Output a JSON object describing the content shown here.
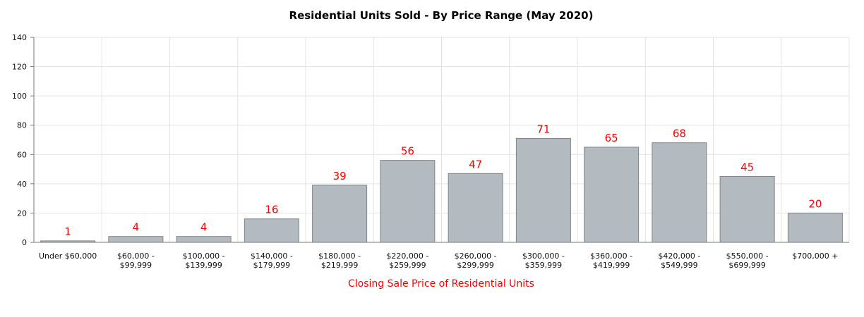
{
  "chart_data": {
    "type": "bar",
    "title": "Residential Units Sold - By Price Range (May 2020)",
    "xlabel": "Closing Sale Price of Residential Units",
    "ylabel": "",
    "ylim": [
      0,
      140
    ],
    "yticks": [
      0,
      20,
      40,
      60,
      80,
      100,
      120,
      140
    ],
    "grid": true,
    "categories": [
      [
        "Under $60,000"
      ],
      [
        "$60,000 -",
        "$99,999"
      ],
      [
        "$100,000 -",
        "$139,999"
      ],
      [
        "$140,000 -",
        "$179,999"
      ],
      [
        "$180,000 -",
        "$219,999"
      ],
      [
        "$220,000 -",
        "$259,999"
      ],
      [
        "$260,000 -",
        "$299,999"
      ],
      [
        "$300,000 -",
        "$359,999"
      ],
      [
        "$360,000 -",
        "$419,999"
      ],
      [
        "$420,000 -",
        "$549,999"
      ],
      [
        "$550,000 -",
        "$699,999"
      ],
      [
        "$700,000 +"
      ]
    ],
    "values": [
      1,
      4,
      4,
      16,
      39,
      56,
      47,
      71,
      65,
      68,
      45,
      20
    ],
    "colors": {
      "bar": "#b4bbc0",
      "bar_border": "#7f8589",
      "data_label": "#ff0000",
      "xlabel": "#ff0000",
      "grid": "#e3e3e3",
      "axis": "#7a7a7a"
    }
  }
}
